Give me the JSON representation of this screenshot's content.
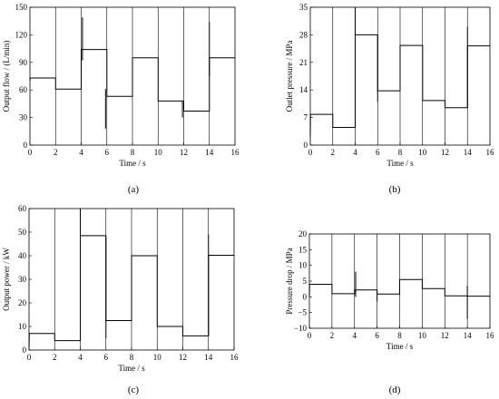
{
  "chart_data": [
    {
      "type": "line",
      "panel_label": "(a)",
      "xlabel": "Time / s",
      "ylabel": "Output flow / (L/min)",
      "xlim": [
        0,
        16
      ],
      "ylim": [
        0,
        150
      ],
      "xticks": [
        0,
        2,
        4,
        6,
        8,
        10,
        12,
        14,
        16
      ],
      "yticks": [
        0,
        30,
        60,
        90,
        120,
        150
      ],
      "series": [
        {
          "x": [
            0,
            0.02,
            2,
            2,
            4,
            4,
            6,
            6,
            8,
            8,
            10,
            10,
            12,
            12,
            14,
            14,
            16
          ],
          "values": [
            70,
            73,
            73,
            61,
            61,
            104,
            104,
            53,
            53,
            95,
            95,
            48,
            48,
            37,
            37,
            95,
            95
          ]
        }
      ],
      "spikes": [
        {
          "x": 4.1,
          "low": 92,
          "high": 139
        },
        {
          "x": 5.9,
          "low": 18,
          "high": 61
        },
        {
          "x": 11.9,
          "low": 30,
          "high": 48
        },
        {
          "x": 14.0,
          "low": 75,
          "high": 134
        }
      ]
    },
    {
      "type": "line",
      "panel_label": "(b)",
      "xlabel": "Time / s",
      "ylabel": "Outlet pressure / MPa",
      "xlim": [
        0,
        16
      ],
      "ylim": [
        0,
        35
      ],
      "xticks": [
        0,
        2,
        4,
        6,
        8,
        10,
        12,
        14,
        16
      ],
      "yticks": [
        0,
        7,
        14,
        21,
        28,
        35
      ],
      "series": [
        {
          "x": [
            0,
            0.02,
            2,
            2,
            4,
            4,
            6,
            6,
            8,
            8,
            10,
            10,
            12,
            12,
            14,
            14,
            16
          ],
          "values": [
            2,
            7.8,
            7.8,
            4.5,
            4.5,
            28,
            28,
            13.8,
            13.8,
            25.3,
            25.3,
            11.3,
            11.3,
            9.5,
            9.5,
            25.2,
            25.2
          ]
        }
      ],
      "spikes": [
        {
          "x": 4.0,
          "low": 4.5,
          "high": 35
        },
        {
          "x": 6.0,
          "low": 11,
          "high": 28
        },
        {
          "x": 14.0,
          "low": 9.5,
          "high": 30
        }
      ]
    },
    {
      "type": "line",
      "panel_label": "(c)",
      "xlabel": "Time / s",
      "ylabel": "Output power / kW",
      "xlim": [
        0,
        16
      ],
      "ylim": [
        0,
        60
      ],
      "xticks": [
        0,
        2,
        4,
        6,
        8,
        10,
        12,
        14,
        16
      ],
      "yticks": [
        0,
        10,
        20,
        30,
        40,
        50,
        60
      ],
      "series": [
        {
          "x": [
            0,
            0.02,
            2,
            2,
            4,
            4,
            6,
            6,
            8,
            8,
            10,
            10,
            12,
            12,
            14,
            14,
            16
          ],
          "values": [
            1,
            7,
            7,
            4,
            4,
            48.5,
            48.5,
            12.5,
            12.5,
            40,
            40,
            10,
            10,
            6,
            6,
            40.2,
            40.2
          ]
        }
      ],
      "spikes": [
        {
          "x": 4.0,
          "low": 4,
          "high": 60
        },
        {
          "x": 6.0,
          "low": 5,
          "high": 48
        },
        {
          "x": 14.0,
          "low": 6,
          "high": 49
        }
      ]
    },
    {
      "type": "line",
      "panel_label": "(d)",
      "xlabel": "Time / s",
      "ylabel": "Pressure drop / MPa",
      "xlim": [
        0,
        16
      ],
      "ylim": [
        -10,
        20
      ],
      "xticks": [
        0,
        2,
        4,
        6,
        8,
        10,
        12,
        14,
        16
      ],
      "yticks": [
        -10,
        -5,
        0,
        5,
        10,
        15,
        20
      ],
      "series": [
        {
          "x": [
            0,
            0.02,
            2,
            2,
            4,
            4,
            6,
            6,
            8,
            8,
            10,
            10,
            12,
            12,
            14,
            14,
            16
          ],
          "values": [
            0,
            4,
            4,
            1,
            1,
            2.2,
            2.2,
            0.9,
            0.9,
            5.5,
            5.5,
            2.6,
            2.6,
            0.3,
            0.3,
            0.2,
            0.2
          ]
        }
      ],
      "spikes": [
        {
          "x": 4.1,
          "low": 0,
          "high": 8
        },
        {
          "x": 6.0,
          "low": -1.5,
          "high": 2
        },
        {
          "x": 14.0,
          "low": -7,
          "high": 3.5
        }
      ]
    }
  ]
}
